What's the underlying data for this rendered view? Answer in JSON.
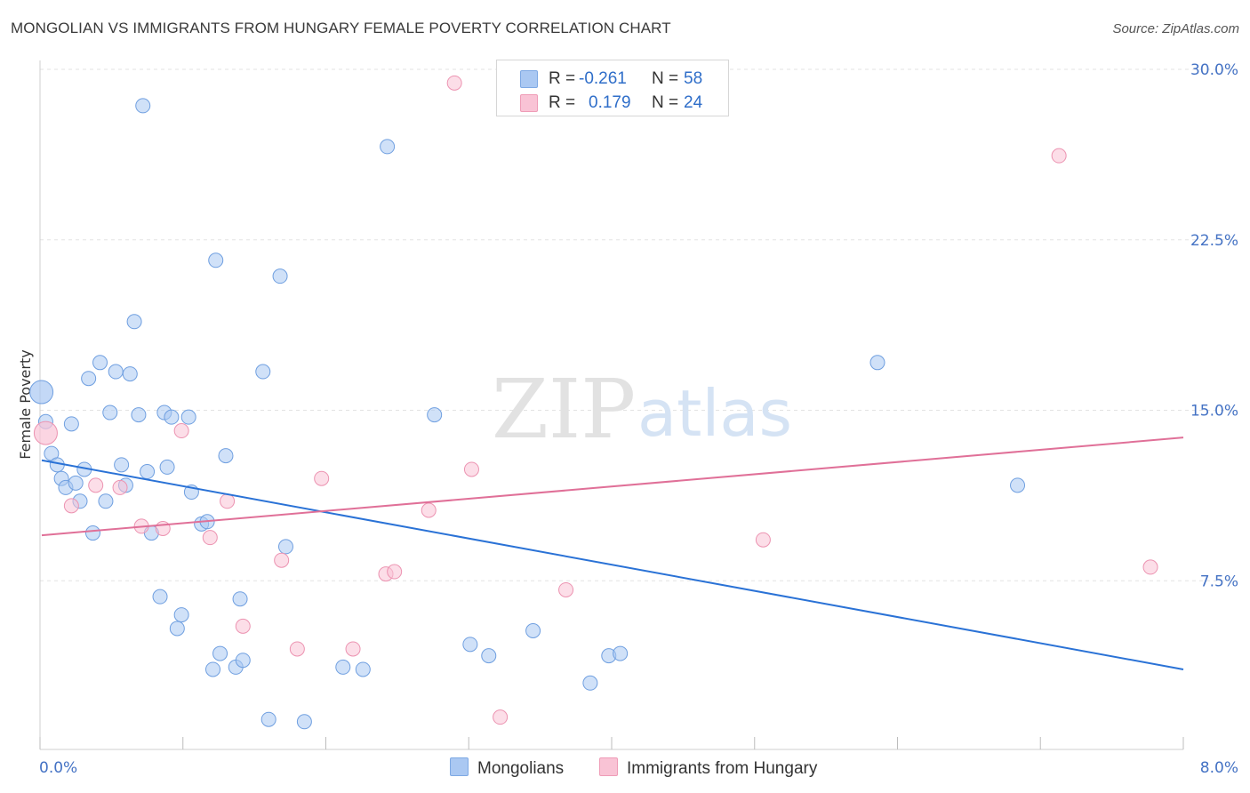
{
  "title": "MONGOLIAN VS IMMIGRANTS FROM HUNGARY FEMALE POVERTY CORRELATION CHART",
  "source": "Source: ZipAtlas.com",
  "watermark": {
    "zip": "ZIP",
    "atlas": "atlas"
  },
  "legend": {
    "rows": [
      {
        "r_label": "R =",
        "r_value": "-0.261",
        "n_label": "N =",
        "n_value": "58",
        "color": "#aac8f2",
        "border": "#7ea9e4"
      },
      {
        "r_label": "R =",
        "r_value": "0.179",
        "n_label": "N =",
        "n_value": "24",
        "color": "#f9c3d5",
        "border": "#ef9cb7"
      }
    ]
  },
  "bottom_legend": {
    "series1": "Mongolians",
    "series2": "Immigrants from Hungary"
  },
  "chart_data": {
    "type": "scatter",
    "title": "MONGOLIAN VS IMMIGRANTS FROM HUNGARY FEMALE POVERTY CORRELATION CHART",
    "xlabel": "",
    "ylabel": "Female Poverty",
    "xlim": [
      0,
      8
    ],
    "ylim": [
      0,
      30.5
    ],
    "x_tick_labels": [
      {
        "value": 0,
        "label": "0.0%"
      },
      {
        "value": 8,
        "label": "8.0%"
      }
    ],
    "y_tick_labels": [
      {
        "value": 7.5,
        "label": "7.5%"
      },
      {
        "value": 15,
        "label": "15.0%"
      },
      {
        "value": 22.5,
        "label": "22.5%"
      },
      {
        "value": 30,
        "label": "30.0%"
      }
    ],
    "grid": true,
    "series": [
      {
        "name": "Mongolians",
        "color": "#aac8f2",
        "stroke": "#6f9fe0",
        "line_color": "#2a72d6",
        "trend": {
          "x": [
            0,
            8
          ],
          "y": [
            12.8,
            3.6
          ]
        },
        "points": [
          [
            0.01,
            15.8,
            "big"
          ],
          [
            0.04,
            14.5
          ],
          [
            0.08,
            13.1
          ],
          [
            0.12,
            12.6
          ],
          [
            0.15,
            12.0
          ],
          [
            0.18,
            11.6
          ],
          [
            0.22,
            14.4
          ],
          [
            0.25,
            11.8
          ],
          [
            0.28,
            11.0
          ],
          [
            0.31,
            12.4
          ],
          [
            0.34,
            16.4
          ],
          [
            0.37,
            9.6
          ],
          [
            0.42,
            17.1
          ],
          [
            0.46,
            11.0
          ],
          [
            0.49,
            14.9
          ],
          [
            0.53,
            16.7
          ],
          [
            0.57,
            12.6
          ],
          [
            0.6,
            11.7
          ],
          [
            0.63,
            16.6
          ],
          [
            0.66,
            18.9
          ],
          [
            0.69,
            14.8
          ],
          [
            0.72,
            28.4
          ],
          [
            0.75,
            12.3
          ],
          [
            0.78,
            9.6
          ],
          [
            0.84,
            6.8
          ],
          [
            0.87,
            14.9
          ],
          [
            0.89,
            12.5
          ],
          [
            0.92,
            14.7
          ],
          [
            0.96,
            5.4
          ],
          [
            0.99,
            6.0
          ],
          [
            1.04,
            14.7
          ],
          [
            1.06,
            11.4
          ],
          [
            1.13,
            10.0
          ],
          [
            1.17,
            10.1
          ],
          [
            1.21,
            3.6
          ],
          [
            1.23,
            21.6
          ],
          [
            1.26,
            4.3
          ],
          [
            1.3,
            13.0
          ],
          [
            1.37,
            3.7
          ],
          [
            1.4,
            6.7
          ],
          [
            1.42,
            4.0
          ],
          [
            1.56,
            16.7
          ],
          [
            1.6,
            1.4
          ],
          [
            1.68,
            20.9
          ],
          [
            1.72,
            9.0
          ],
          [
            1.85,
            1.3
          ],
          [
            2.12,
            3.7
          ],
          [
            2.26,
            3.6
          ],
          [
            2.43,
            26.6
          ],
          [
            2.76,
            14.8
          ],
          [
            3.01,
            4.7
          ],
          [
            3.14,
            4.2
          ],
          [
            3.45,
            5.3
          ],
          [
            3.85,
            3.0
          ],
          [
            3.98,
            4.2
          ],
          [
            4.06,
            4.3
          ],
          [
            5.86,
            17.1
          ],
          [
            6.84,
            11.7
          ]
        ]
      },
      {
        "name": "Immigrants from Hungary",
        "color": "#f9c3d5",
        "stroke": "#ec93b1",
        "line_color": "#e07098",
        "trend": {
          "x": [
            0,
            8
          ],
          "y": [
            9.5,
            13.8
          ]
        },
        "points": [
          [
            0.04,
            14.0,
            "big"
          ],
          [
            0.22,
            10.8
          ],
          [
            0.39,
            11.7
          ],
          [
            0.56,
            11.6
          ],
          [
            0.71,
            9.9
          ],
          [
            0.86,
            9.8
          ],
          [
            0.99,
            14.1
          ],
          [
            1.19,
            9.4
          ],
          [
            1.31,
            11.0
          ],
          [
            1.42,
            5.5
          ],
          [
            1.69,
            8.4
          ],
          [
            1.8,
            4.5
          ],
          [
            1.97,
            12.0
          ],
          [
            2.19,
            4.5
          ],
          [
            2.42,
            7.8
          ],
          [
            2.48,
            7.9
          ],
          [
            2.72,
            10.6
          ],
          [
            2.9,
            29.4
          ],
          [
            3.02,
            12.4
          ],
          [
            3.22,
            1.5
          ],
          [
            3.68,
            7.1
          ],
          [
            5.06,
            9.3
          ],
          [
            7.13,
            26.2
          ],
          [
            7.77,
            8.1
          ]
        ]
      }
    ]
  }
}
